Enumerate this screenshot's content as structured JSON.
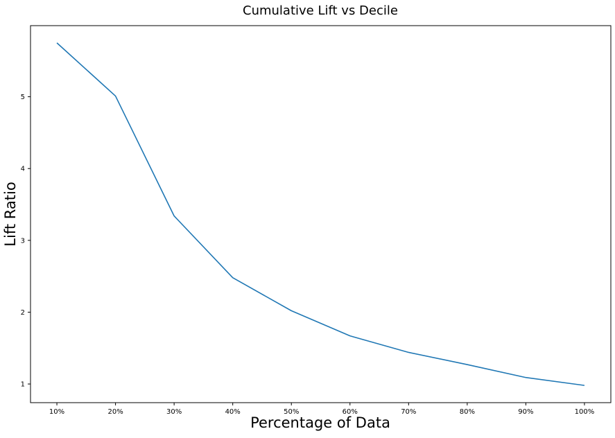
{
  "chart_data": {
    "type": "line",
    "title": "Cumulative Lift vs Decile",
    "xlabel": "Percentage of Data",
    "ylabel": "Lift Ratio",
    "categories": [
      "10%",
      "20%",
      "30%",
      "40%",
      "50%",
      "60%",
      "70%",
      "80%",
      "90%",
      "100%"
    ],
    "series": [
      {
        "values": [
          5.75,
          5.01,
          3.34,
          2.48,
          2.02,
          1.67,
          1.44,
          1.27,
          1.09,
          0.98
        ],
        "color": "#1f77b4"
      }
    ],
    "yticks": [
      1,
      2,
      3,
      4,
      5
    ],
    "ylim": [
      0.74,
      5.99
    ],
    "grid": false,
    "legend": "none"
  }
}
